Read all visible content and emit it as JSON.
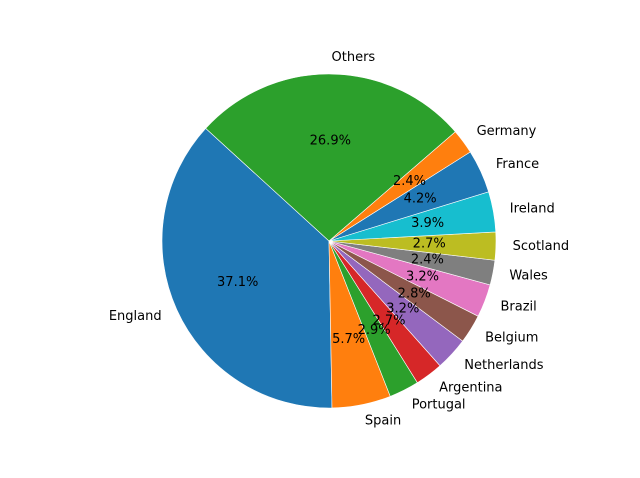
{
  "chart_data": {
    "type": "pie",
    "title": "",
    "start_angle": 137.6,
    "direction": "counterclockwise",
    "legend": "none",
    "slices": [
      {
        "label": "England",
        "value": 37.1,
        "pct_label": "37.1%",
        "color": "#1f77b4"
      },
      {
        "label": "Spain",
        "value": 5.7,
        "pct_label": "5.7%",
        "color": "#ff7f0e"
      },
      {
        "label": "Portugal",
        "value": 2.9,
        "pct_label": "2.9%",
        "color": "#2ca02c"
      },
      {
        "label": "Argentina",
        "value": 2.7,
        "pct_label": "2.7%",
        "color": "#d62728"
      },
      {
        "label": "Netherlands",
        "value": 3.2,
        "pct_label": "3.2%",
        "color": "#9467bd"
      },
      {
        "label": "Belgium",
        "value": 2.8,
        "pct_label": "2.8%",
        "color": "#8c564b"
      },
      {
        "label": "Brazil",
        "value": 3.2,
        "pct_label": "3.2%",
        "color": "#e377c2"
      },
      {
        "label": "Wales",
        "value": 2.4,
        "pct_label": "2.4%",
        "color": "#7f7f7f"
      },
      {
        "label": "Scotland",
        "value": 2.7,
        "pct_label": "2.7%",
        "color": "#bcbd22"
      },
      {
        "label": "Ireland",
        "value": 3.9,
        "pct_label": "3.9%",
        "color": "#17becf"
      },
      {
        "label": "France",
        "value": 4.2,
        "pct_label": "4.2%",
        "color": "#1f77b4"
      },
      {
        "label": "Germany",
        "value": 2.4,
        "pct_label": "2.4%",
        "color": "#ff7f0e"
      },
      {
        "label": "Others",
        "value": 26.9,
        "pct_label": "26.9%",
        "color": "#2ca02c"
      }
    ]
  }
}
